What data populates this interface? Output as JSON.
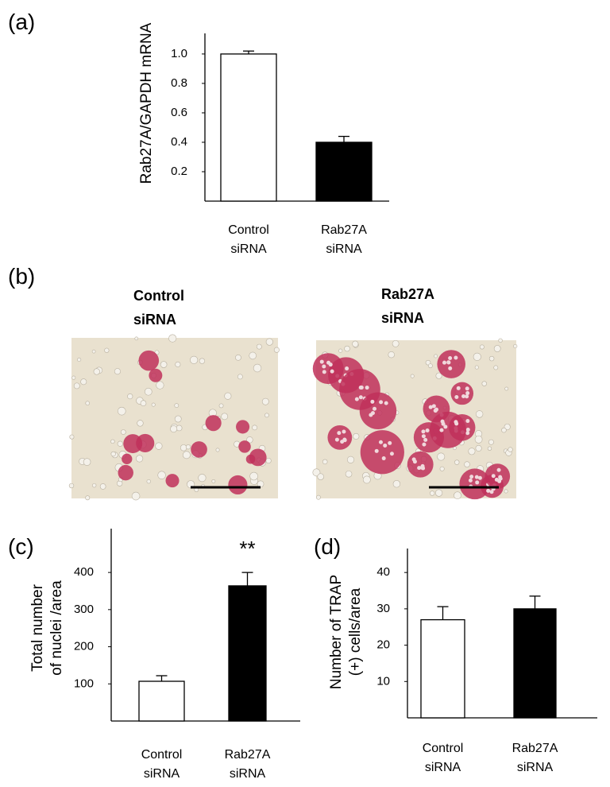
{
  "chart_data": [
    {
      "type": "bar",
      "panel_label": "(a)",
      "y_label": "Rab27A/GAPDH mRNA",
      "categories": [
        "Control siRNA",
        "Rab27A siRNA"
      ],
      "values": [
        1.0,
        0.4
      ],
      "errors": [
        0.02,
        0.04
      ],
      "colors": [
        "#ffffff",
        "#000000"
      ],
      "ylim": [
        0,
        1.14
      ],
      "yticks": [
        0.2,
        0.4,
        0.6,
        0.8,
        {
          "value": 1,
          "label": "1.0"
        }
      ]
    },
    {
      "type": "bar",
      "panel_label": "(c)",
      "y_label": "Total number of nuclei /area",
      "categories": [
        "Control siRNA",
        "Rab27A siRNA"
      ],
      "values": [
        107,
        364
      ],
      "errors": [
        15,
        36
      ],
      "significance": [
        null,
        "**"
      ],
      "colors": [
        "#ffffff",
        "#000000"
      ],
      "ylim": [
        0,
        518
      ],
      "yticks": [
        100,
        200,
        300,
        400
      ]
    },
    {
      "type": "bar",
      "panel_label": "(d)",
      "y_label": "Number of TRAP (+) cells/area",
      "categories": [
        "Control siRNA",
        "Rab27A siRNA"
      ],
      "values": [
        27,
        30
      ],
      "errors": [
        3.6,
        3.5
      ],
      "colors": [
        "#ffffff",
        "#000000"
      ],
      "ylim": [
        0,
        46.6
      ],
      "yticks": [
        10,
        20,
        30,
        40
      ]
    }
  ],
  "images": {
    "panel_label": "(b)",
    "captions": [
      "Control siRNA",
      "Rab27A siRNA"
    ]
  }
}
